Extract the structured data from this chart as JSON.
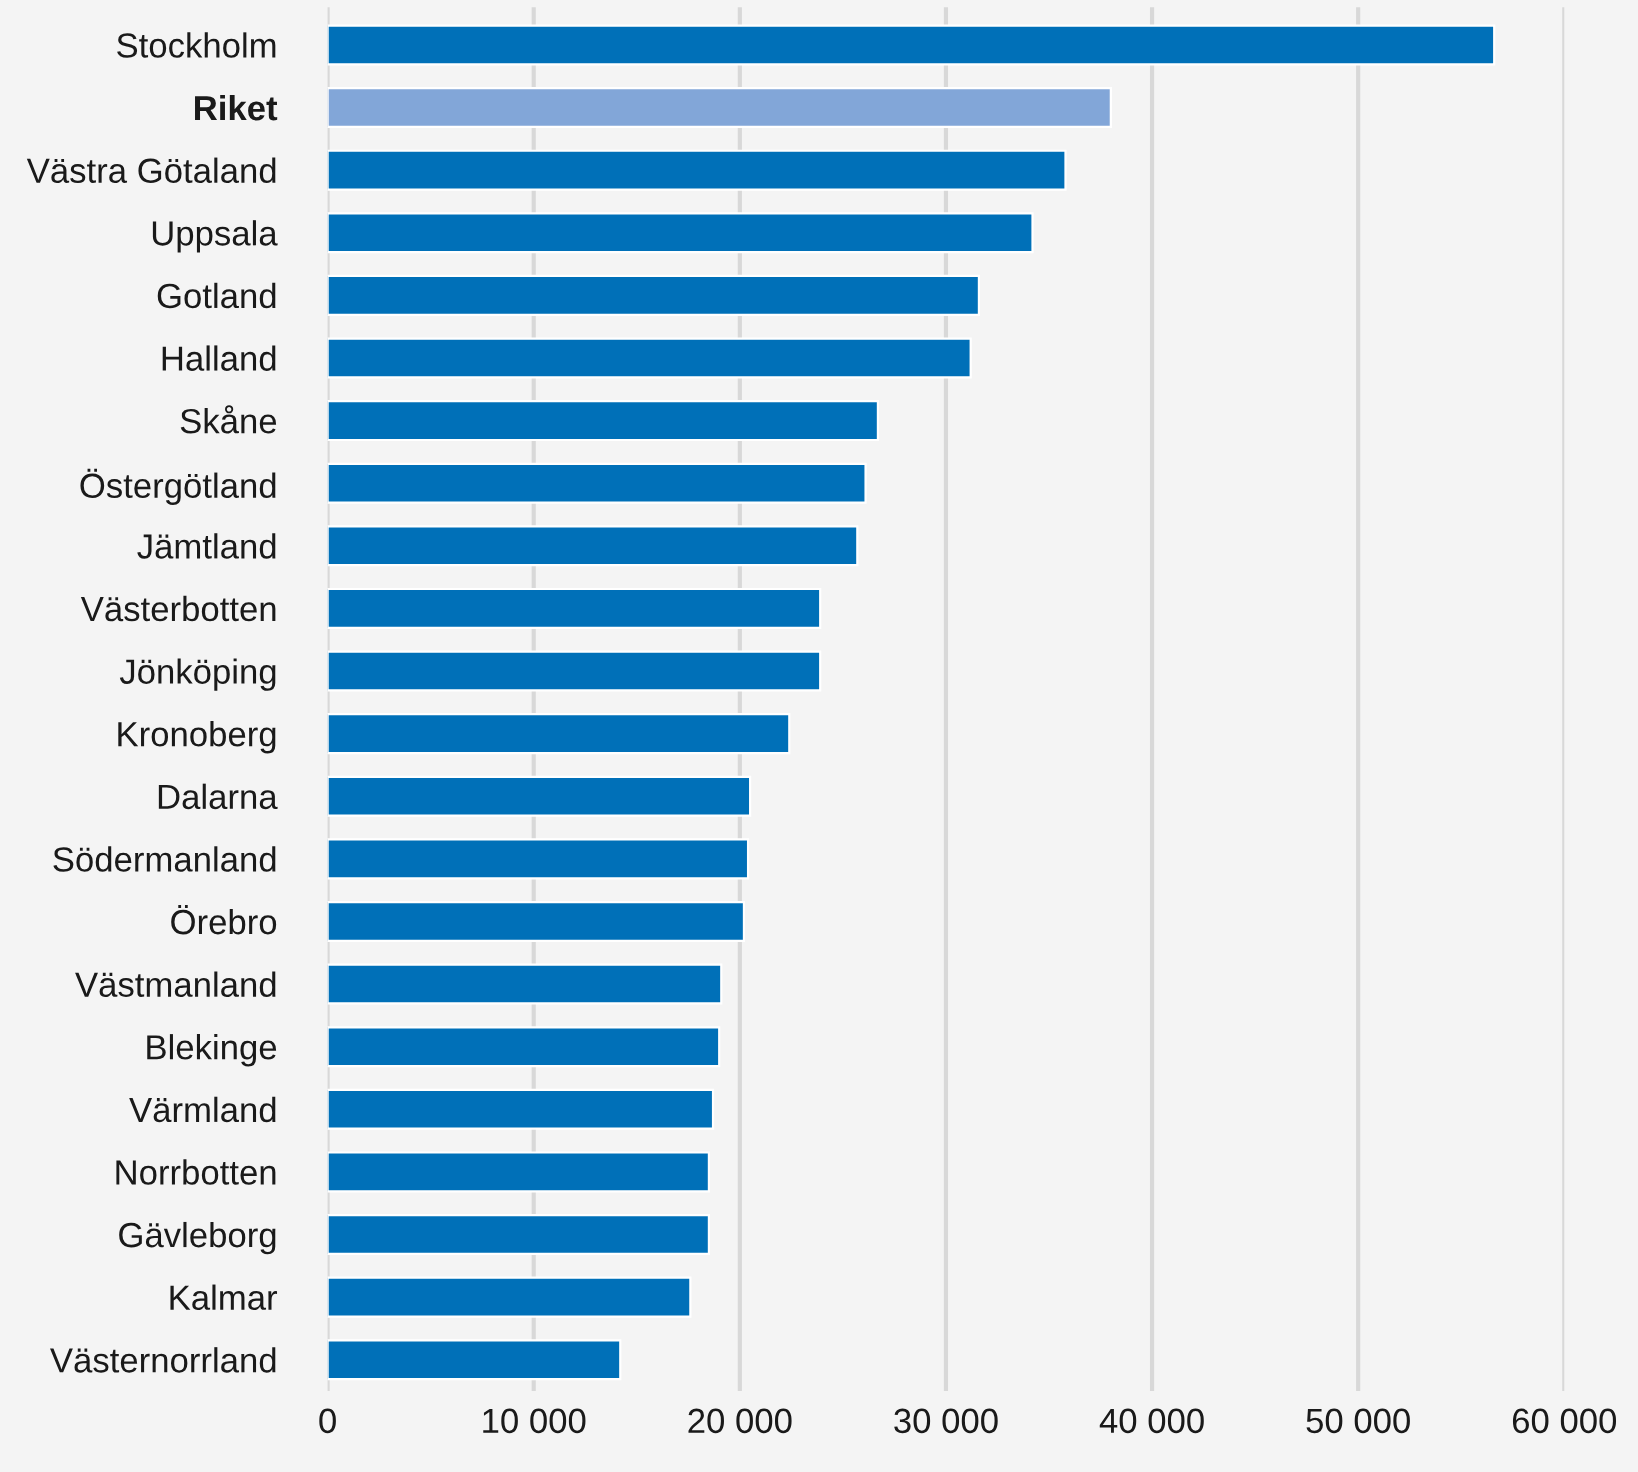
{
  "chart_data": {
    "type": "bar",
    "orientation": "horizontal",
    "categories": [
      "Stockholm",
      "Riket",
      "Västra Götaland",
      "Uppsala",
      "Gotland",
      "Halland",
      "Skåne",
      "Östergötland",
      "Jämtland",
      "Västerbotten",
      "Jönköping",
      "Kronoberg",
      "Dalarna",
      "Södermanland",
      "Örebro",
      "Västmanland",
      "Blekinge",
      "Värmland",
      "Norrbotten",
      "Gävleborg",
      "Kalmar",
      "Västernorrland"
    ],
    "values": [
      56600,
      38000,
      35800,
      34200,
      31600,
      31200,
      26700,
      26100,
      25700,
      23900,
      23900,
      22400,
      20500,
      20400,
      20200,
      19100,
      19000,
      18700,
      18500,
      18500,
      17600,
      14200
    ],
    "colors": [
      "#0070b8",
      "#82a6d8",
      "#0070b8",
      "#0070b8",
      "#0070b8",
      "#0070b8",
      "#0070b8",
      "#0070b8",
      "#0070b8",
      "#0070b8",
      "#0070b8",
      "#0070b8",
      "#0070b8",
      "#0070b8",
      "#0070b8",
      "#0070b8",
      "#0070b8",
      "#0070b8",
      "#0070b8",
      "#0070b8",
      "#0070b8",
      "#0070b8"
    ],
    "xlim": [
      0,
      60000
    ],
    "xticks": [
      0,
      {
        "value": 10000,
        "label": "10 000"
      },
      {
        "value": 20000,
        "label": "20 000"
      },
      {
        "value": 30000,
        "label": "30 000"
      },
      {
        "value": 40000,
        "label": "40 000"
      },
      {
        "value": 50000,
        "label": "50 000"
      },
      {
        "value": 60000,
        "label": "60 000"
      }
    ],
    "grid": "x"
  }
}
